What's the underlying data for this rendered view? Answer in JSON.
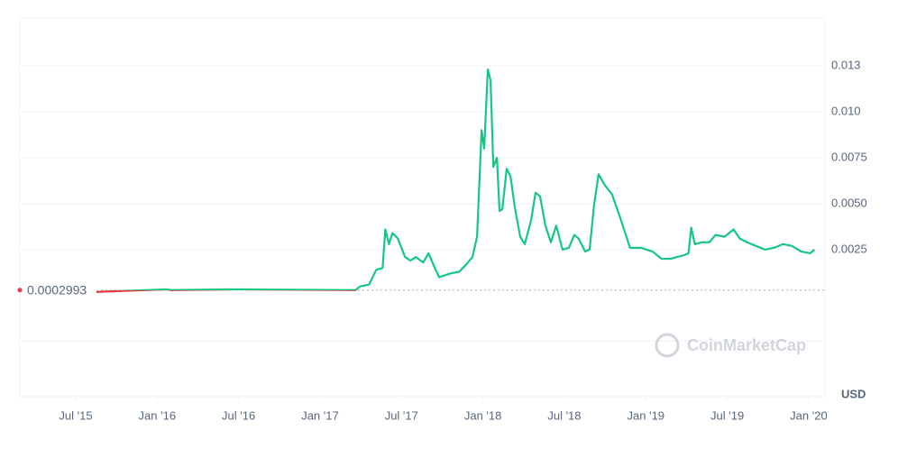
{
  "chart_data": {
    "type": "line",
    "x": [
      2015.627,
      2016.058,
      2016.086,
      2016.472,
      2017.218,
      2017.246,
      2017.301,
      2017.345,
      2017.384,
      2017.401,
      2017.423,
      2017.445,
      2017.478,
      2017.522,
      2017.555,
      2017.588,
      2017.633,
      2017.666,
      2017.71,
      2017.732,
      2017.798,
      2017.854,
      2017.898,
      2017.936,
      2017.964,
      2017.992,
      2018.008,
      2018.03,
      2018.047,
      2018.064,
      2018.086,
      2018.102,
      2018.119,
      2018.146,
      2018.169,
      2018.196,
      2018.229,
      2018.257,
      2018.296,
      2018.323,
      2018.351,
      2018.384,
      2018.417,
      2018.45,
      2018.489,
      2018.528,
      2018.561,
      2018.588,
      2018.627,
      2018.655,
      2018.682,
      2018.71,
      2018.749,
      2018.793,
      2018.848,
      2018.903,
      2018.97,
      2019.041,
      2019.097,
      2019.152,
      2019.191,
      2019.235,
      2019.262,
      2019.279,
      2019.301,
      2019.345,
      2019.39,
      2019.428,
      2019.483,
      2019.539,
      2019.577,
      2019.622,
      2019.677,
      2019.732,
      2019.787,
      2019.843,
      2019.898,
      2019.953,
      2020.008,
      2020.036
    ],
    "values": [
      0.0002,
      0.00034,
      0.0003,
      0.00034,
      0.0003,
      0.0005,
      0.0006,
      0.0014,
      0.0015,
      0.0036,
      0.0028,
      0.0034,
      0.0031,
      0.0021,
      0.0019,
      0.0021,
      0.0018,
      0.0023,
      0.0014,
      0.001,
      0.0012,
      0.0013,
      0.0017,
      0.0021,
      0.0032,
      0.009,
      0.008,
      0.0123,
      0.0117,
      0.007,
      0.0075,
      0.0046,
      0.0047,
      0.0069,
      0.0065,
      0.0048,
      0.0032,
      0.0028,
      0.0041,
      0.0056,
      0.0054,
      0.0038,
      0.0029,
      0.0038,
      0.0025,
      0.0026,
      0.0033,
      0.0031,
      0.0024,
      0.0025,
      0.0049,
      0.0066,
      0.006,
      0.0055,
      0.0041,
      0.0026,
      0.0026,
      0.0024,
      0.002,
      0.002,
      0.0021,
      0.0022,
      0.0023,
      0.0037,
      0.0028,
      0.0029,
      0.0029,
      0.0033,
      0.0032,
      0.0036,
      0.0031,
      0.0029,
      0.0027,
      0.0025,
      0.0026,
      0.0028,
      0.0027,
      0.0024,
      0.0023,
      0.0025
    ],
    "baseline": 0.0002993,
    "color_above": "#16c784",
    "color_below": "#ea3943",
    "xlim": [
      2015.157,
      2020.1
    ],
    "xticks": [
      {
        "value": 2015.5,
        "label": "Jul '15"
      },
      {
        "value": 2016,
        "label": "Jan '16"
      },
      {
        "value": 2016.5,
        "label": "Jul '16"
      },
      {
        "value": 2017,
        "label": "Jan '17"
      },
      {
        "value": 2017.5,
        "label": "Jul '17"
      },
      {
        "value": 2018,
        "label": "Jan '18"
      },
      {
        "value": 2018.5,
        "label": "Jul '18"
      },
      {
        "value": 2019,
        "label": "Jan '19"
      },
      {
        "value": 2019.5,
        "label": "Jul '19"
      },
      {
        "value": 2020,
        "label": "Jan '20"
      }
    ],
    "ylim": [
      -0.0055,
      0.0151
    ],
    "yticks": [
      0.0025,
      {
        "value": 0.005,
        "label": "0.0050"
      },
      {
        "value": 0.0075,
        "label": "0.0075"
      },
      {
        "value": 0.01,
        "label": "0.010"
      },
      {
        "value": 0.0125,
        "label": "0.013"
      }
    ],
    "grid": true,
    "currency": "USD",
    "watermark": "CoinMarketCap"
  }
}
